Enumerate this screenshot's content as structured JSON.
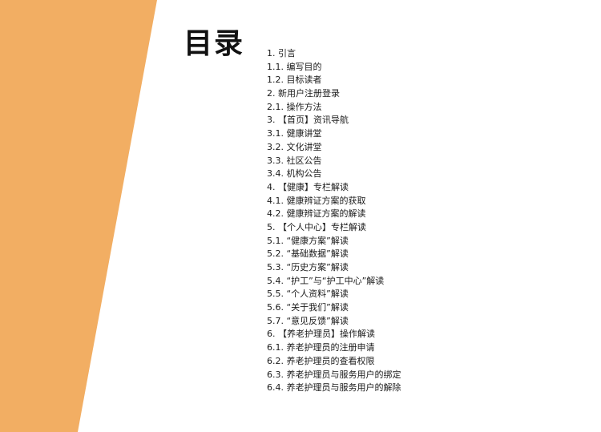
{
  "colors": {
    "accent": "#F2AE63",
    "background": "#FFFFFF",
    "text": "#1A1A1A"
  },
  "document": {
    "title": "目录",
    "toc": [
      "1. 引言",
      "1.1. 编写目的",
      "1.2. 目标读者",
      "2. 新用户注册登录",
      "2.1. 操作方法",
      "3. 【首页】资讯导航",
      "3.1. 健康讲堂",
      "3.2. 文化讲堂",
      "3.3. 社区公告",
      "3.4. 机构公告",
      "4. 【健康】专栏解读",
      "4.1. 健康辨证方案的获取",
      "4.2. 健康辨证方案的解读",
      "5. 【个人中心】专栏解读",
      "5.1. “健康方案”解读",
      "5.2. “基础数据”解读",
      "5.3. “历史方案”解读",
      "5.4. “护工”与“护工中心”解读",
      "5.5. “个人资料”解读",
      "5.6. “关于我们”解读",
      "5.7. “意见反馈”解读",
      "6. 【养老护理员】操作解读",
      "6.1. 养老护理员的注册申请",
      "6.2. 养老护理员的查看权限",
      "6.3. 养老护理员与服务用户的绑定",
      "6.4. 养老护理员与服务用户的解除"
    ]
  }
}
